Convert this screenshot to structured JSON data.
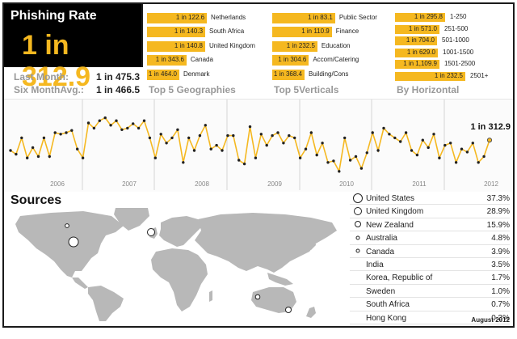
{
  "headline": {
    "title": "Phishing Rate",
    "value": "1 in 312.9"
  },
  "stats": [
    {
      "label": "Last Month:",
      "value": "1 in 475.3"
    },
    {
      "label": "Six MonthAvg.:",
      "value": "1 in 466.5"
    }
  ],
  "geographies": {
    "title": "Top 5 Geographies",
    "items": [
      {
        "value": "1 in 122.6",
        "label": "Netherlands",
        "ratio": 122.6
      },
      {
        "value": "1 in 140.3",
        "label": "South Africa",
        "ratio": 140.3
      },
      {
        "value": "1 in 140.8",
        "label": "United Kingdom",
        "ratio": 140.8
      },
      {
        "value": "1 in 343.6",
        "label": "Canada",
        "ratio": 343.6
      },
      {
        "value": "1 in 464.0",
        "label": "Denmark",
        "ratio": 464.0
      }
    ]
  },
  "verticals": {
    "title": "Top 5Verticals",
    "items": [
      {
        "value": "1 in 83.1",
        "label": "Public Sector",
        "ratio": 83.1
      },
      {
        "value": "1 in 110.9",
        "label": "Finance",
        "ratio": 110.9
      },
      {
        "value": "1 in 232.5",
        "label": "Education",
        "ratio": 232.5
      },
      {
        "value": "1 in 304.6",
        "label": "Accom/Catering",
        "ratio": 304.6
      },
      {
        "value": "1 in 368.4",
        "label": "Building/Cons",
        "ratio": 368.4
      }
    ]
  },
  "horizontal": {
    "title": "By Horizontal",
    "items": [
      {
        "value": "1 in 295.8",
        "label": "1-250",
        "ratio": 295.8
      },
      {
        "value": "1 in 571.0",
        "label": "251-500",
        "ratio": 571.0
      },
      {
        "value": "1 in 704.0",
        "label": "501-1000",
        "ratio": 704.0
      },
      {
        "value": "1 in 629.0",
        "label": "1001-1500",
        "ratio": 629.0
      },
      {
        "value": "1 in 1,109.9",
        "label": "1501-2500",
        "ratio": 1109.9
      },
      {
        "value": "1 in 232.5",
        "label": "2501+",
        "ratio": 232.5
      }
    ]
  },
  "chart_data": {
    "type": "line",
    "title": "",
    "xlabel": "",
    "ylabel": "",
    "x_tick_labels": [
      "2006",
      "2007",
      "2008",
      "2009",
      "2010",
      "2011",
      "2012"
    ],
    "series": [
      {
        "color": "#f5b820",
        "values": [
          0.38,
          0.33,
          0.55,
          0.28,
          0.42,
          0.3,
          0.55,
          0.3,
          0.62,
          0.6,
          0.62,
          0.65,
          0.4,
          0.28,
          0.75,
          0.68,
          0.78,
          0.82,
          0.72,
          0.78,
          0.66,
          0.68,
          0.74,
          0.68,
          0.78,
          0.55,
          0.28,
          0.6,
          0.48,
          0.55,
          0.66,
          0.22,
          0.55,
          0.38,
          0.58,
          0.72,
          0.4,
          0.45,
          0.38,
          0.58,
          0.58,
          0.25,
          0.2,
          0.7,
          0.28,
          0.6,
          0.45,
          0.58,
          0.62,
          0.48,
          0.58,
          0.55,
          0.28,
          0.4,
          0.62,
          0.32,
          0.48,
          0.22,
          0.24,
          0.1,
          0.55,
          0.25,
          0.3,
          0.14,
          0.35,
          0.62,
          0.38,
          0.68,
          0.6,
          0.55,
          0.5,
          0.62,
          0.38,
          0.32,
          0.52,
          0.42,
          0.6,
          0.28,
          0.45,
          0.48,
          0.22,
          0.4,
          0.36,
          0.48,
          0.22,
          0.3,
          0.52
        ]
      }
    ],
    "last_label": "1 in 312.9"
  },
  "sources": {
    "title": "Sources",
    "items": [
      {
        "name": "United States",
        "pct": "37.3%",
        "value": 37.3,
        "dot": true
      },
      {
        "name": "United Kingdom",
        "pct": "28.9%",
        "value": 28.9,
        "dot": true
      },
      {
        "name": "New Zealand",
        "pct": "15.9%",
        "value": 15.9,
        "dot": true
      },
      {
        "name": "Australia",
        "pct": "4.8%",
        "value": 4.8,
        "dot": true
      },
      {
        "name": "Canada",
        "pct": "3.9%",
        "value": 3.9,
        "dot": true
      },
      {
        "name": "India",
        "pct": "3.5%",
        "value": 3.5,
        "dot": false
      },
      {
        "name": "Korea, Republic of",
        "pct": "1.7%",
        "value": 1.7,
        "dot": false
      },
      {
        "name": "Sweden",
        "pct": "1.0%",
        "value": 1.0,
        "dot": false
      },
      {
        "name": "South Africa",
        "pct": "0.7%",
        "value": 0.7,
        "dot": false
      },
      {
        "name": "Hong Kong",
        "pct": "0.3%",
        "value": 0.3,
        "dot": false
      }
    ]
  },
  "footer": {
    "date": "August 2012"
  },
  "colors": {
    "accent": "#f5b820",
    "dark": "#000000",
    "label_gray": "#999999",
    "map_gray": "#b8b8b8"
  }
}
